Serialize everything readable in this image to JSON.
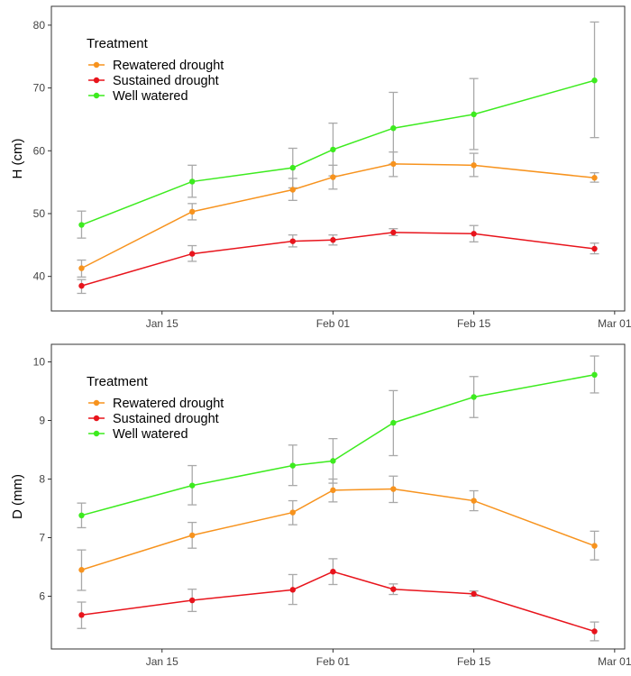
{
  "figure": {
    "legend_title": "Treatment",
    "legend_placement": "top-left",
    "grid": false
  },
  "series_styles": [
    {
      "name": "Rewatered drought",
      "color": "#F7931E"
    },
    {
      "name": "Sustained drought",
      "color": "#E8141C"
    },
    {
      "name": "Well watered",
      "color": "#3DEB1F"
    }
  ],
  "x_ticks": [
    {
      "date": "2022-01-15",
      "label": "Jan 15"
    },
    {
      "date": "2022-02-01",
      "label": "Feb 01"
    },
    {
      "date": "2022-02-15",
      "label": "Feb 15"
    },
    {
      "date": "2022-03-01",
      "label": "Mar 01"
    }
  ],
  "chart_data": [
    {
      "type": "line",
      "title": "",
      "xlabel": "",
      "ylabel": "H (cm)",
      "ylim": [
        34.5,
        83.0
      ],
      "xlim": [
        "2022-01-04",
        "2022-03-02"
      ],
      "yticks": [
        40,
        50,
        60,
        70,
        80
      ],
      "x": [
        "2022-01-07",
        "2022-01-18",
        "2022-01-28",
        "2022-02-01",
        "2022-02-07",
        "2022-02-15",
        "2022-02-27"
      ],
      "series": [
        {
          "name": "Rewatered drought",
          "values": [
            41.3,
            50.3,
            53.8,
            55.8,
            57.9,
            57.7,
            55.7
          ],
          "err_low": [
            39.9,
            49.0,
            52.1,
            53.9,
            55.9,
            55.9,
            55.0
          ],
          "err_high": [
            42.6,
            51.6,
            55.6,
            57.7,
            59.8,
            59.6,
            56.5
          ]
        },
        {
          "name": "Sustained drought",
          "values": [
            38.5,
            43.6,
            45.6,
            45.8,
            47.0,
            46.8,
            44.4
          ],
          "err_low": [
            37.3,
            42.4,
            44.7,
            45.0,
            46.5,
            45.5,
            43.6
          ],
          "err_high": [
            39.5,
            44.9,
            46.6,
            46.6,
            47.6,
            48.1,
            45.3
          ]
        },
        {
          "name": "Well watered",
          "values": [
            48.2,
            55.1,
            57.3,
            60.2,
            63.6,
            65.8,
            71.2
          ],
          "err_low": [
            46.1,
            52.6,
            54.1,
            56.0,
            57.9,
            60.2,
            62.1
          ],
          "err_high": [
            50.4,
            57.7,
            60.4,
            64.4,
            69.3,
            71.5,
            80.5
          ]
        }
      ]
    },
    {
      "type": "line",
      "title": "",
      "xlabel": "",
      "ylabel": "D (mm)",
      "ylim": [
        5.1,
        10.3
      ],
      "xlim": [
        "2022-01-04",
        "2022-03-02"
      ],
      "yticks": [
        6,
        7,
        8,
        9,
        10
      ],
      "x": [
        "2022-01-07",
        "2022-01-18",
        "2022-01-28",
        "2022-02-01",
        "2022-02-07",
        "2022-02-15",
        "2022-02-27"
      ],
      "series": [
        {
          "name": "Rewatered drought",
          "values": [
            6.45,
            7.04,
            7.43,
            7.81,
            7.83,
            7.63,
            6.86
          ],
          "err_low": [
            6.1,
            6.82,
            7.22,
            7.61,
            7.6,
            7.46,
            6.62
          ],
          "err_high": [
            6.79,
            7.26,
            7.63,
            8.0,
            8.05,
            7.8,
            7.11
          ]
        },
        {
          "name": "Sustained drought",
          "values": [
            5.68,
            5.93,
            6.11,
            6.42,
            6.12,
            6.04,
            5.4
          ],
          "err_low": [
            5.45,
            5.74,
            5.86,
            6.2,
            6.03,
            6.0,
            5.24
          ],
          "err_high": [
            5.9,
            6.12,
            6.37,
            6.64,
            6.21,
            6.09,
            5.56
          ]
        },
        {
          "name": "Well watered",
          "values": [
            7.38,
            7.89,
            8.23,
            8.31,
            8.96,
            9.4,
            9.78
          ],
          "err_low": [
            7.17,
            7.56,
            7.89,
            7.93,
            8.4,
            9.05,
            9.47
          ],
          "err_high": [
            7.59,
            8.23,
            8.58,
            8.69,
            9.51,
            9.75,
            10.1
          ]
        }
      ]
    }
  ]
}
